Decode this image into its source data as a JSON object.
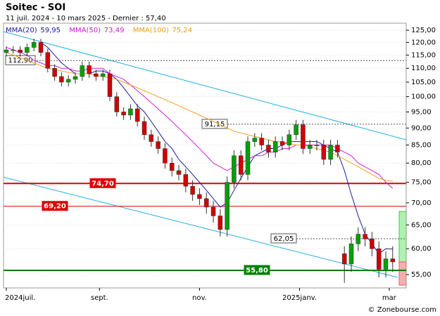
{
  "chart_data": {
    "type": "candlestick",
    "title": "Soitec - SOI",
    "subtitle": "11 juil. 2024 - 10 mars 2025 - Dernier : 57,40",
    "footer": "© Zonebourse.com",
    "log_scale": true,
    "grid": true,
    "ylim": [
      52.6,
      128
    ],
    "yticks": [
      {
        "value": 125,
        "label": "125,00"
      },
      {
        "value": 120,
        "label": "120,00"
      },
      {
        "value": 115,
        "label": "115,00"
      },
      {
        "value": 110,
        "label": "110,00"
      },
      {
        "value": 105,
        "label": "105,00"
      },
      {
        "value": 100,
        "label": "100,00"
      },
      {
        "value": 95,
        "label": "95,00"
      },
      {
        "value": 90,
        "label": "90,00"
      },
      {
        "value": 85,
        "label": "85,00"
      },
      {
        "value": 80,
        "label": "80,00"
      },
      {
        "value": 75,
        "label": "75,00"
      },
      {
        "value": 70,
        "label": "70,00"
      },
      {
        "value": 65,
        "label": "65,00"
      },
      {
        "value": 60,
        "label": "60,00"
      },
      {
        "value": 55,
        "label": "55,00"
      }
    ],
    "xticks": [
      {
        "value": 0,
        "label": "2024juil."
      },
      {
        "value": 13.5,
        "label": "sept."
      },
      {
        "value": 28,
        "label": "nov."
      },
      {
        "value": 42.5,
        "label": "2025janv."
      },
      {
        "value": 55.5,
        "label": "mar"
      }
    ],
    "up_color": "#00a000",
    "down_color": "#d00000",
    "candles": {
      "open": [
        116,
        117,
        117,
        116,
        118,
        120,
        116,
        110,
        107,
        105,
        106,
        107,
        111,
        108,
        107,
        108,
        100,
        95,
        94,
        96,
        92,
        88,
        86,
        84,
        80,
        78,
        77,
        74,
        72,
        71,
        69,
        67,
        64,
        75,
        82,
        77,
        86,
        87,
        85,
        83,
        86,
        85,
        88,
        91,
        84,
        85,
        85,
        81,
        85,
        59,
        57,
        61,
        63,
        62,
        60,
        56,
        58
      ],
      "high": [
        118.5,
        118.5,
        118.5,
        119.5,
        121.5,
        121.5,
        117.5,
        111.5,
        108.5,
        107.5,
        108.5,
        112.5,
        112.5,
        109.5,
        109.5,
        109.5,
        101.5,
        96.5,
        97.5,
        97.5,
        93.5,
        89.5,
        87.5,
        85.5,
        81.5,
        79.5,
        78.5,
        75.5,
        73.5,
        72.5,
        70.5,
        68.5,
        76.5,
        83.5,
        83.5,
        87.5,
        88.5,
        88.5,
        86.5,
        87.5,
        87.5,
        89.5,
        92.5,
        92.5,
        86.5,
        86.5,
        86.5,
        86.5,
        86.5,
        60.5,
        62.5,
        64.5,
        64.5,
        63.5,
        61.5,
        59.5,
        60.5
      ],
      "low": [
        114.5,
        115.5,
        114.5,
        114.5,
        116.5,
        114.5,
        108.5,
        105.5,
        103.5,
        103.5,
        104.5,
        105.5,
        106.5,
        105.5,
        105.5,
        98.5,
        93.5,
        92.5,
        92.5,
        90.5,
        86.5,
        84.5,
        82.5,
        78.5,
        76.5,
        75.5,
        72.5,
        70.5,
        69.5,
        67.5,
        65.5,
        62.5,
        62.5,
        73.5,
        75.5,
        75.5,
        84.5,
        83.5,
        81.5,
        81.5,
        83.5,
        83.5,
        86.5,
        82.5,
        82.5,
        83.5,
        79.5,
        79.5,
        81.5,
        53.5,
        55.5,
        59.5,
        60.5,
        58.5,
        54.5,
        54.5,
        55.5
      ],
      "close": [
        117,
        117,
        116,
        118,
        120,
        116,
        110,
        107,
        105,
        106,
        107,
        111,
        108,
        107,
        108,
        100,
        95,
        94,
        96,
        92,
        88,
        86,
        84,
        80,
        78,
        77,
        74,
        72,
        71,
        69,
        67,
        64,
        75,
        82,
        77,
        86,
        87,
        85,
        83,
        86,
        85,
        88,
        91,
        84,
        85,
        85,
        81,
        85,
        83,
        57,
        61,
        63,
        62,
        60,
        56,
        58,
        57.4
      ]
    },
    "series": [
      {
        "name": "MMA(20)",
        "color": "#1c1c9c",
        "last_label": "59,95",
        "values": [
          null,
          null,
          null,
          null,
          null,
          120,
          118,
          115,
          112,
          110,
          108,
          108,
          108,
          109,
          109,
          108,
          106,
          103,
          100,
          97,
          95,
          92,
          89,
          86,
          84,
          81,
          79,
          77,
          75,
          73,
          71,
          69,
          70,
          73,
          76,
          79,
          82,
          83,
          84,
          84,
          85,
          86,
          86,
          86,
          86,
          86,
          85,
          84,
          83,
          78,
          72,
          67,
          63,
          61,
          59,
          60,
          59.95
        ]
      },
      {
        "name": "MMA(50)",
        "color": "#d020d0",
        "last_label": "73,49",
        "values": [
          118,
          117,
          116,
          115,
          113,
          112,
          111,
          111,
          110,
          110,
          109,
          109,
          110,
          110,
          110,
          108,
          107,
          106,
          104,
          102,
          100,
          98,
          96,
          94,
          92,
          90,
          88,
          86,
          84,
          82,
          80,
          79,
          78,
          79,
          80,
          81,
          82,
          82,
          83,
          83,
          84,
          84,
          85,
          85,
          85,
          85,
          85,
          85,
          84,
          83,
          82,
          80,
          79,
          78,
          77,
          75,
          73.49
        ]
      },
      {
        "name": "MMA(100)",
        "color": "#f0a020",
        "last_label": "75,24",
        "values": [
          116,
          115,
          114,
          113,
          112,
          111,
          110,
          109.5,
          109,
          108.5,
          108,
          108,
          108,
          107.5,
          107,
          106.5,
          106,
          105,
          104,
          103,
          102,
          101,
          100,
          99,
          98,
          97,
          96,
          95,
          94,
          93,
          92,
          91,
          90,
          89,
          88.5,
          88,
          87.5,
          87,
          86.5,
          86,
          86,
          85.5,
          85,
          85,
          84.5,
          84,
          83.5,
          83,
          82,
          81,
          80,
          79,
          78,
          77,
          76,
          75.5,
          75.24
        ]
      }
    ],
    "trend_lines": [
      {
        "color": "#20b0e0",
        "x": [
          -0.4,
          57.96
        ],
        "values": [
          124.4,
          86.5
        ]
      },
      {
        "color": "#20b0e0",
        "x": [
          -0.4,
          56.7
        ],
        "values": [
          76.3,
          54.5
        ]
      }
    ],
    "levels": [
      {
        "value": 112.9,
        "label": "112,90",
        "color": "#555555",
        "style": "dashed"
      },
      {
        "value": 91.15,
        "label": "91,15",
        "color": "#555555",
        "style": "dashed"
      },
      {
        "value": 74.7,
        "label": "74,70",
        "color": "#e00000",
        "style": "thick"
      },
      {
        "value": 69.2,
        "label": "69,20",
        "color": "#e00000",
        "style": "thin"
      },
      {
        "value": 62.05,
        "label": "62,05",
        "color": "#555555",
        "style": "dashed"
      },
      {
        "value": 55.8,
        "label": "55,80",
        "color": "#008000",
        "style": "thick"
      }
    ],
    "range_box": {
      "high": 68,
      "last": 57.4,
      "low": 53.1,
      "up_color": "#b0f0b0",
      "down_color": "#f4b0b0"
    }
  }
}
